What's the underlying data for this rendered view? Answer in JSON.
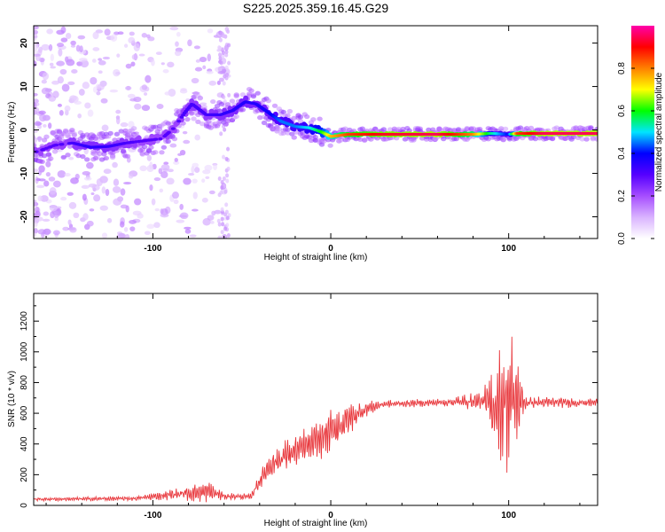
{
  "title": "S225.2025.359.16.45.G29",
  "colors": {
    "snr_line": "#e8353a",
    "background": "#ffffff",
    "axis": "#000000"
  },
  "chart_data": [
    {
      "type": "heatmap",
      "title": "S225.2025.359.16.45.G29",
      "xlabel": "Height of straight line (km)",
      "ylabel": "Frequency (Hz)",
      "xlim": [
        -167,
        150
      ],
      "ylim": [
        -25,
        24
      ],
      "x_ticks": [
        -100,
        0,
        100
      ],
      "y_ticks": [
        -20,
        -10,
        0,
        10,
        20
      ],
      "colorbar": {
        "label": "Normalized spectral amplitude",
        "range": [
          0.0,
          1.0
        ],
        "ticks": [
          0.0,
          0.2,
          0.4,
          0.6,
          0.8
        ],
        "colormap": [
          "#ffffff",
          "#d9b3ff",
          "#a64dff",
          "#5500ff",
          "#0000ff",
          "#00e5ff",
          "#00ff00",
          "#ffff00",
          "#ff8000",
          "#ff0000",
          "#ff00aa"
        ]
      },
      "ridge": [
        {
          "x": -165,
          "f": -5.0,
          "a": 0.3
        },
        {
          "x": -155,
          "f": -3.5,
          "a": 0.3
        },
        {
          "x": -145,
          "f": -3.0,
          "a": 0.32
        },
        {
          "x": -135,
          "f": -4.0,
          "a": 0.35
        },
        {
          "x": -125,
          "f": -3.8,
          "a": 0.34
        },
        {
          "x": -115,
          "f": -3.0,
          "a": 0.32
        },
        {
          "x": -105,
          "f": -2.5,
          "a": 0.3
        },
        {
          "x": -95,
          "f": -2.0,
          "a": 0.3
        },
        {
          "x": -88,
          "f": 0.5,
          "a": 0.3
        },
        {
          "x": -82,
          "f": 4.0,
          "a": 0.32
        },
        {
          "x": -78,
          "f": 6.0,
          "a": 0.32
        },
        {
          "x": -70,
          "f": 3.5,
          "a": 0.32
        },
        {
          "x": -62,
          "f": 3.5,
          "a": 0.34
        },
        {
          "x": -55,
          "f": 4.5,
          "a": 0.35
        },
        {
          "x": -48,
          "f": 6.5,
          "a": 0.36
        },
        {
          "x": -42,
          "f": 6.0,
          "a": 0.36
        },
        {
          "x": -35,
          "f": 4.0,
          "a": 0.38
        },
        {
          "x": -28,
          "f": 2.0,
          "a": 0.45
        },
        {
          "x": -20,
          "f": 0.8,
          "a": 0.45
        },
        {
          "x": -12,
          "f": 0.5,
          "a": 0.5
        },
        {
          "x": -5,
          "f": -0.5,
          "a": 0.6
        },
        {
          "x": 0,
          "f": -1.5,
          "a": 0.75
        },
        {
          "x": 10,
          "f": -1.0,
          "a": 0.85
        },
        {
          "x": 30,
          "f": -1.0,
          "a": 0.92
        },
        {
          "x": 60,
          "f": -1.0,
          "a": 0.95
        },
        {
          "x": 80,
          "f": -1.0,
          "a": 0.8
        },
        {
          "x": 90,
          "f": -0.8,
          "a": 0.55
        },
        {
          "x": 100,
          "f": -1.0,
          "a": 0.4
        },
        {
          "x": 105,
          "f": -0.8,
          "a": 0.85
        },
        {
          "x": 120,
          "f": -0.8,
          "a": 0.95
        },
        {
          "x": 140,
          "f": -0.8,
          "a": 0.95
        },
        {
          "x": 150,
          "f": -0.8,
          "a": 0.95
        }
      ]
    },
    {
      "type": "line",
      "xlabel": "Height of straight line (km)",
      "ylabel": "SNR (10 * v/v)",
      "xlim": [
        -167,
        150
      ],
      "ylim": [
        0,
        1380
      ],
      "x_ticks": [
        -100,
        0,
        100
      ],
      "y_ticks": [
        0,
        200,
        400,
        600,
        800,
        1000,
        1200
      ],
      "series": [
        {
          "name": "SNR",
          "envelope": [
            {
              "x": -167,
              "mean": 40,
              "amp": 12
            },
            {
              "x": -110,
              "mean": 45,
              "amp": 15
            },
            {
              "x": -90,
              "mean": 70,
              "amp": 35
            },
            {
              "x": -68,
              "mean": 90,
              "amp": 70
            },
            {
              "x": -60,
              "mean": 60,
              "amp": 25
            },
            {
              "x": -45,
              "mean": 55,
              "amp": 20
            },
            {
              "x": -42,
              "mean": 120,
              "amp": 40
            },
            {
              "x": -35,
              "mean": 250,
              "amp": 80
            },
            {
              "x": -25,
              "mean": 330,
              "amp": 110
            },
            {
              "x": -10,
              "mean": 400,
              "amp": 130
            },
            {
              "x": 0,
              "mean": 480,
              "amp": 140
            },
            {
              "x": 10,
              "mean": 560,
              "amp": 120
            },
            {
              "x": 20,
              "mean": 630,
              "amp": 50
            },
            {
              "x": 30,
              "mean": 660,
              "amp": 25
            },
            {
              "x": 60,
              "mean": 670,
              "amp": 25
            },
            {
              "x": 85,
              "mean": 680,
              "amp": 60
            },
            {
              "x": 92,
              "mean": 650,
              "amp": 280
            },
            {
              "x": 100,
              "mean": 680,
              "amp": 520
            },
            {
              "x": 105,
              "mean": 680,
              "amp": 260
            },
            {
              "x": 110,
              "mean": 670,
              "amp": 40
            },
            {
              "x": 150,
              "mean": 670,
              "amp": 30
            }
          ]
        }
      ]
    }
  ]
}
